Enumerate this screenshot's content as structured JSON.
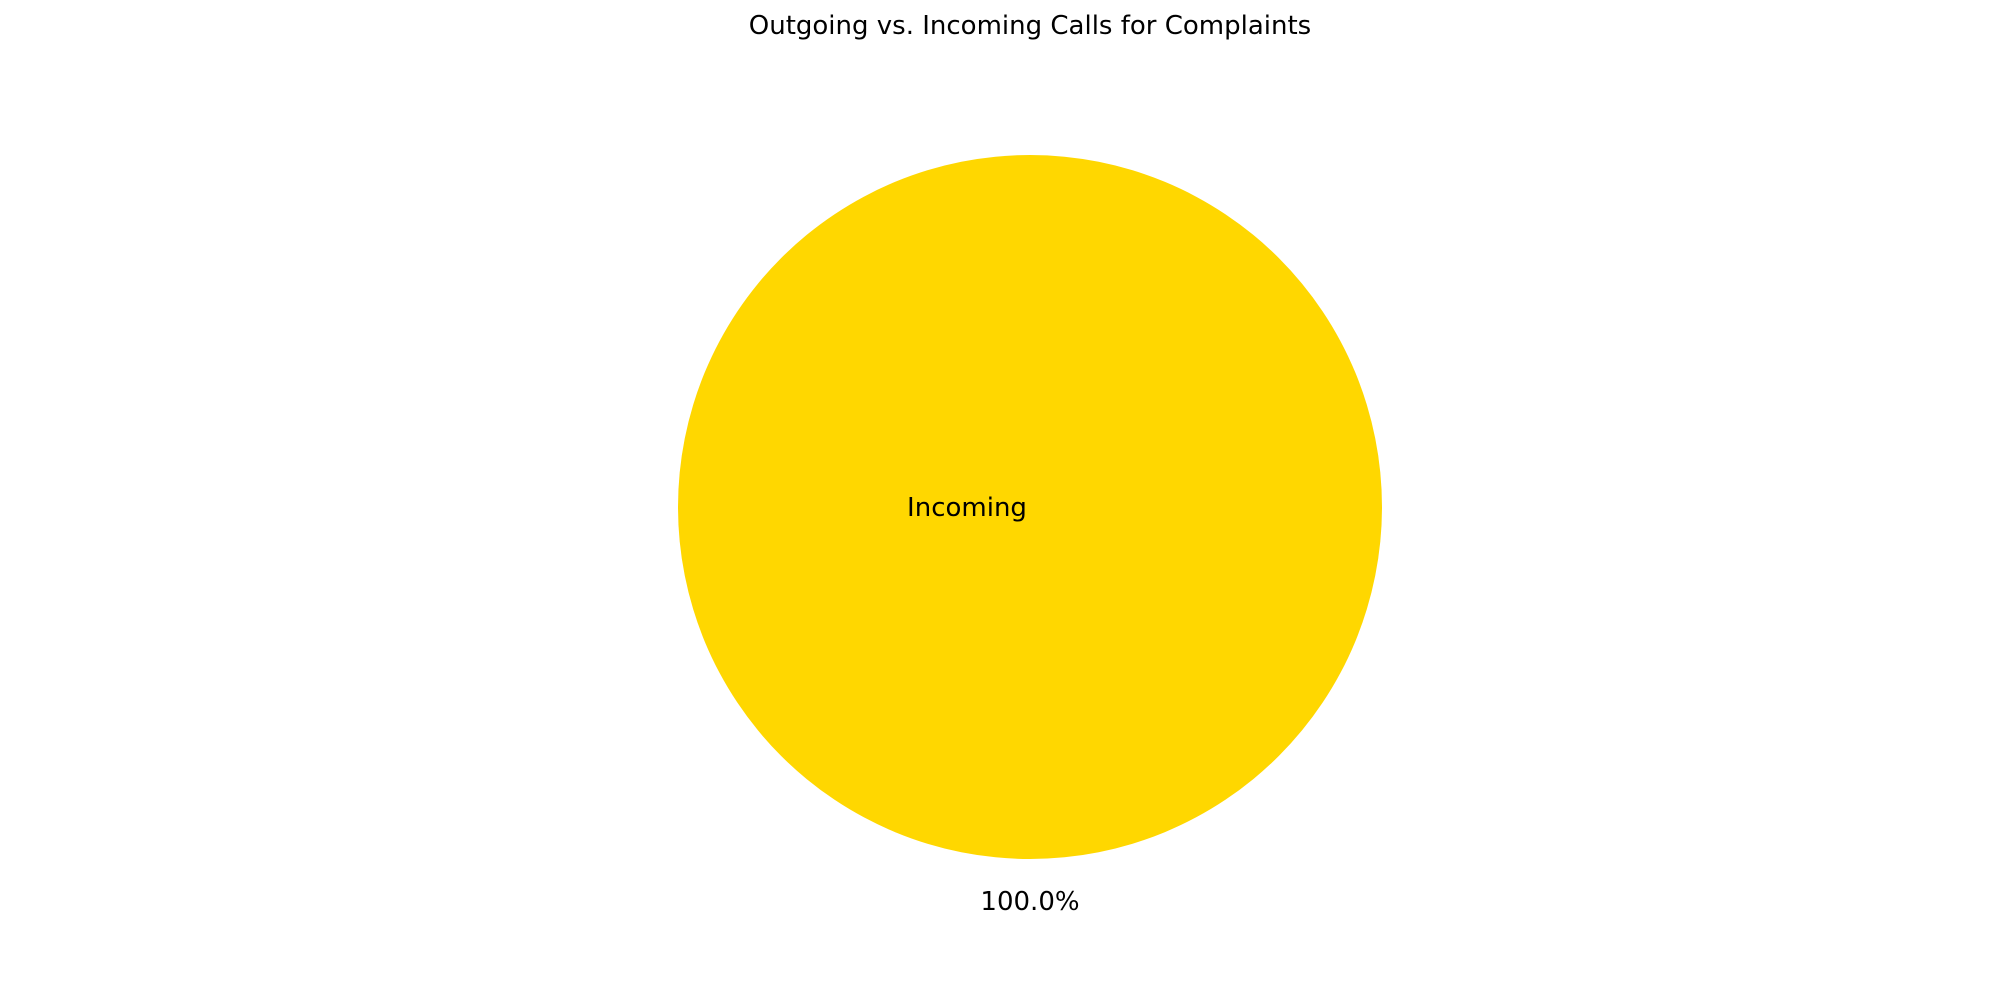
{
  "chart_data": {
    "type": "pie",
    "title": "Outgoing vs. Incoming Calls for Complaints",
    "slices": [
      {
        "label": "Incoming",
        "value": 100.0,
        "pct_label": "100.0%",
        "color": "#FFD700"
      }
    ]
  }
}
